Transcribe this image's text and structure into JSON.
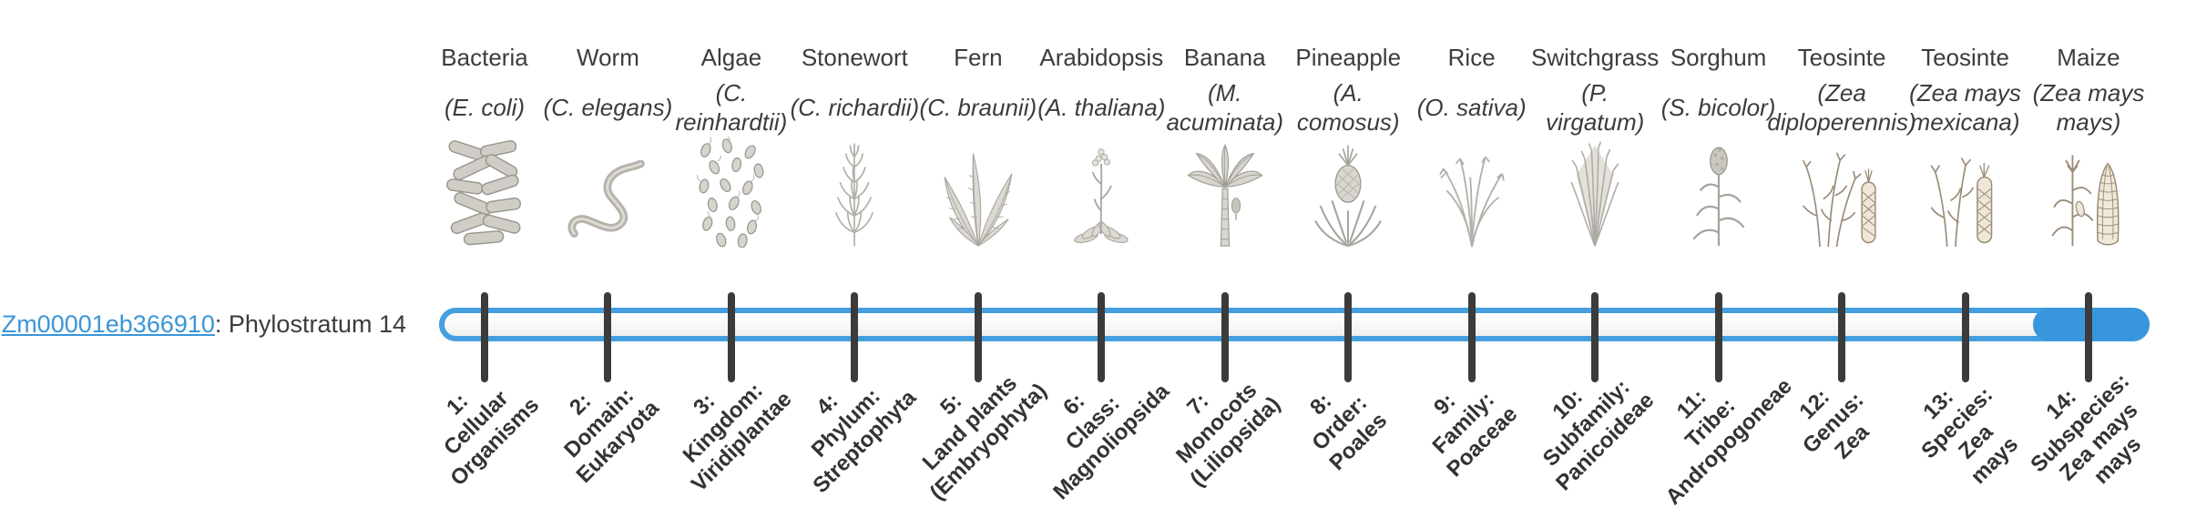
{
  "gene_label": {
    "gene_id": "Zm00001eb366910",
    "suffix": ": Phylostratum 14"
  },
  "timeline": {
    "highlighted_stratum": 14,
    "num_strata": 14,
    "bar_border_color": "#459fde",
    "bar_fill_color": "#3897dc",
    "tick_color": "#3b3b3b",
    "link_color": "#3a96d9"
  },
  "taxa": [
    {
      "stratum": 1,
      "common_name": "Bacteria",
      "scientific_name_lines": [
        "(E. coli)"
      ],
      "stage_label_lines": [
        "1:",
        "Cellular",
        "Organisms"
      ],
      "icon": "bacteria-icon"
    },
    {
      "stratum": 2,
      "common_name": "Worm",
      "scientific_name_lines": [
        "(C. elegans)"
      ],
      "stage_label_lines": [
        "2:",
        "Domain:",
        "Eukaryota"
      ],
      "icon": "worm-icon"
    },
    {
      "stratum": 3,
      "common_name": "Algae",
      "scientific_name_lines": [
        "(C.",
        "reinhardtii)"
      ],
      "stage_label_lines": [
        "3:",
        "Kingdom:",
        "Viridiplantae"
      ],
      "icon": "algae-icon"
    },
    {
      "stratum": 4,
      "common_name": "Stonewort",
      "scientific_name_lines": [
        "(C. richardii)"
      ],
      "stage_label_lines": [
        "4:",
        "Phylum:",
        "Streptophyta"
      ],
      "icon": "stonewort-icon"
    },
    {
      "stratum": 5,
      "common_name": "Fern",
      "scientific_name_lines": [
        "(C. braunii)"
      ],
      "stage_label_lines": [
        "5:",
        "Land plants",
        "(Embryophyta)"
      ],
      "icon": "fern-icon"
    },
    {
      "stratum": 6,
      "common_name": "Arabidopsis",
      "scientific_name_lines": [
        "(A. thaliana)"
      ],
      "stage_label_lines": [
        "6:",
        "Class:",
        "Magnoliopsida"
      ],
      "icon": "arabidopsis-icon"
    },
    {
      "stratum": 7,
      "common_name": "Banana",
      "scientific_name_lines": [
        "(M.",
        "acuminata)"
      ],
      "stage_label_lines": [
        "7:",
        "Monocots",
        "(Liliopsida)"
      ],
      "icon": "banana-icon"
    },
    {
      "stratum": 8,
      "common_name": "Pineapple",
      "scientific_name_lines": [
        "(A.",
        "comosus)"
      ],
      "stage_label_lines": [
        "8:",
        "Order:",
        "Poales"
      ],
      "icon": "pineapple-icon"
    },
    {
      "stratum": 9,
      "common_name": "Rice",
      "scientific_name_lines": [
        "(O. sativa)"
      ],
      "stage_label_lines": [
        "9:",
        "Family:",
        "Poaceae"
      ],
      "icon": "rice-icon"
    },
    {
      "stratum": 10,
      "common_name": "Switchgrass",
      "scientific_name_lines": [
        "(P.",
        "virgatum)"
      ],
      "stage_label_lines": [
        "10:",
        "Subfamily:",
        "Panicoideae"
      ],
      "icon": "switchgrass-icon"
    },
    {
      "stratum": 11,
      "common_name": "Sorghum",
      "scientific_name_lines": [
        "(S. bicolor)"
      ],
      "stage_label_lines": [
        "11:",
        "Tribe:",
        "Andropogoneae"
      ],
      "icon": "sorghum-icon"
    },
    {
      "stratum": 12,
      "common_name": "Teosinte",
      "scientific_name_lines": [
        "(Zea",
        "diploperennis)"
      ],
      "stage_label_lines": [
        "12:",
        "Genus:",
        "Zea"
      ],
      "icon": "teosinte-diploperennis-icon"
    },
    {
      "stratum": 13,
      "common_name": "Teosinte",
      "scientific_name_lines": [
        "(Zea mays",
        "mexicana)"
      ],
      "stage_label_lines": [
        "13:",
        "Species:",
        "Zea",
        "mays"
      ],
      "icon": "teosinte-mexicana-icon"
    },
    {
      "stratum": 14,
      "common_name": "Maize",
      "scientific_name_lines": [
        "(Zea mays",
        "mays)"
      ],
      "stage_label_lines": [
        "14:",
        "Subspecies:",
        "Zea mays",
        "mays"
      ],
      "icon": "maize-icon"
    }
  ]
}
